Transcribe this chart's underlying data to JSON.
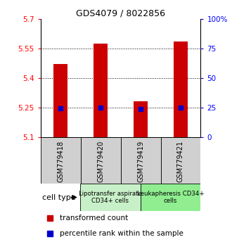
{
  "title": "GDS4079 / 8022856",
  "samples": [
    "GSM779418",
    "GSM779420",
    "GSM779419",
    "GSM779421"
  ],
  "transformed_counts": [
    5.47,
    5.575,
    5.28,
    5.585
  ],
  "percentile_ranks": [
    5.247,
    5.248,
    5.242,
    5.248
  ],
  "ylim_left": [
    5.1,
    5.7
  ],
  "yticks_left": [
    5.1,
    5.25,
    5.4,
    5.55,
    5.7
  ],
  "ytick_labels_left": [
    "5.1",
    "5.25",
    "5.4",
    "5.55",
    "5.7"
  ],
  "ylim_right": [
    0,
    100
  ],
  "yticks_right": [
    0,
    25,
    50,
    75,
    100
  ],
  "ytick_labels_right": [
    "0",
    "25",
    "50",
    "75",
    "100%"
  ],
  "hlines": [
    5.25,
    5.4,
    5.55
  ],
  "bar_bottom": 5.1,
  "bar_color": "#cc0000",
  "percentile_color": "#0000cc",
  "groups": [
    {
      "label": "Lipotransfer aspirate\nCD34+ cells",
      "indices": [
        0,
        1
      ],
      "color": "#c8f0c8"
    },
    {
      "label": "Leukapheresis CD34+\ncells",
      "indices": [
        2,
        3
      ],
      "color": "#90ee90"
    }
  ],
  "sample_box_color": "#d0d0d0",
  "cell_type_label": "cell type",
  "legend_items": [
    {
      "color": "#cc0000",
      "marker": "s",
      "label": "transformed count"
    },
    {
      "color": "#0000cc",
      "marker": "s",
      "label": "percentile rank within the sample"
    }
  ],
  "bar_width": 0.35
}
